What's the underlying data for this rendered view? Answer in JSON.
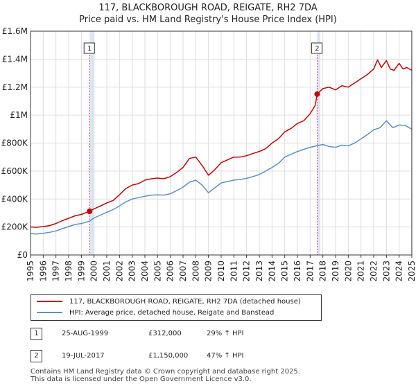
{
  "title": "117, BLACKBOROUGH ROAD, REIGATE, RH2 7DA",
  "subtitle": "Price paid vs. HM Land Registry's House Price Index (HPI)",
  "colors": {
    "property": "#cc0000",
    "hpi": "#5b8fcf",
    "shade": "#dde5f3",
    "grid": "#dddddd",
    "vline": "#ee4444"
  },
  "chart_data": {
    "type": "line",
    "title": "117, BLACKBOROUGH ROAD, REIGATE, RH2 7DA",
    "subtitle": "Price paid vs. HM Land Registry's House Price Index (HPI)",
    "xlim": [
      1995,
      2025
    ],
    "ylim": [
      0,
      1600000
    ],
    "x_ticks": [
      1995,
      1996,
      1997,
      1998,
      1999,
      2000,
      2001,
      2002,
      2003,
      2004,
      2005,
      2006,
      2007,
      2008,
      2009,
      2010,
      2011,
      2012,
      2013,
      2014,
      2015,
      2016,
      2017,
      2018,
      2019,
      2020,
      2021,
      2022,
      2023,
      2024,
      2025
    ],
    "x_tick_labels": [
      "1995",
      "1996",
      "1997",
      "1998",
      "1999",
      "2000",
      "2001",
      "2002",
      "2003",
      "2004",
      "2005",
      "2006",
      "2007",
      "2008",
      "2009",
      "2010",
      "2011",
      "2012",
      "2013",
      "2014",
      "2015",
      "2016",
      "2017",
      "2018",
      "2019",
      "2020",
      "2021",
      "2022",
      "2023",
      "2024",
      "2025"
    ],
    "y_ticks": [
      0,
      200000,
      400000,
      600000,
      800000,
      1000000,
      1200000,
      1400000,
      1600000
    ],
    "y_tick_labels": [
      "£0",
      "£200K",
      "£400K",
      "£600K",
      "£800K",
      "£1M",
      "£1.2M",
      "£1.4M",
      "£1.6M"
    ],
    "grid": true,
    "shaded_ranges": [
      [
        1999.65,
        2000.0
      ],
      [
        2017.55,
        2017.8
      ],
      [
        2024.95,
        2025.0
      ]
    ],
    "series": [
      {
        "name": "117, BLACKBOROUGH ROAD, REIGATE, RH2 7DA (detached house)",
        "color": "#cc0000",
        "x": [
          1995,
          1995.5,
          1996,
          1996.5,
          1997,
          1997.5,
          1998,
          1998.5,
          1999,
          1999.65,
          2000,
          2000.5,
          2001,
          2001.5,
          2002,
          2002.5,
          2003,
          2003.5,
          2004,
          2004.5,
          2005,
          2005.5,
          2006,
          2006.5,
          2007,
          2007.5,
          2008,
          2008.5,
          2009,
          2009.5,
          2010,
          2010.5,
          2011,
          2011.5,
          2012,
          2012.5,
          2013,
          2013.5,
          2014,
          2014.5,
          2015,
          2015.5,
          2016,
          2016.5,
          2017,
          2017.4,
          2017.55,
          2018,
          2018.5,
          2019,
          2019.5,
          2020,
          2020.5,
          2021,
          2021.5,
          2022,
          2022.3,
          2022.6,
          2023,
          2023.3,
          2023.6,
          2024,
          2024.3,
          2024.6,
          2025
        ],
        "values": [
          200000,
          198000,
          203000,
          210000,
          225000,
          245000,
          262000,
          280000,
          290000,
          312000,
          330000,
          350000,
          372000,
          390000,
          430000,
          475000,
          500000,
          510000,
          535000,
          545000,
          550000,
          545000,
          560000,
          590000,
          625000,
          690000,
          700000,
          640000,
          570000,
          610000,
          660000,
          680000,
          700000,
          700000,
          710000,
          725000,
          740000,
          760000,
          800000,
          830000,
          880000,
          905000,
          940000,
          960000,
          1010000,
          1070000,
          1150000,
          1190000,
          1200000,
          1180000,
          1210000,
          1200000,
          1230000,
          1260000,
          1290000,
          1330000,
          1395000,
          1340000,
          1390000,
          1330000,
          1320000,
          1370000,
          1330000,
          1340000,
          1320000
        ]
      },
      {
        "name": "HPI: Average price, detached house, Reigate and Banstead",
        "color": "#5b8fcf",
        "x": [
          1995,
          1995.5,
          1996,
          1996.5,
          1997,
          1997.5,
          1998,
          1998.5,
          1999,
          1999.65,
          2000,
          2000.5,
          2001,
          2001.5,
          2002,
          2002.5,
          2003,
          2003.5,
          2004,
          2004.5,
          2005,
          2005.5,
          2006,
          2006.5,
          2007,
          2007.5,
          2008,
          2008.5,
          2009,
          2009.5,
          2010,
          2010.5,
          2011,
          2011.5,
          2012,
          2012.5,
          2013,
          2013.5,
          2014,
          2014.5,
          2015,
          2015.5,
          2016,
          2016.5,
          2017,
          2017.55,
          2018,
          2018.5,
          2019,
          2019.5,
          2020,
          2020.5,
          2021,
          2021.5,
          2022,
          2022.5,
          2023,
          2023.5,
          2024,
          2024.5,
          2025
        ],
        "values": [
          152000,
          150000,
          155000,
          162000,
          172000,
          188000,
          203000,
          218000,
          225000,
          242000,
          265000,
          285000,
          305000,
          325000,
          350000,
          380000,
          400000,
          410000,
          420000,
          428000,
          430000,
          428000,
          438000,
          460000,
          485000,
          520000,
          535000,
          500000,
          445000,
          480000,
          515000,
          525000,
          535000,
          540000,
          548000,
          560000,
          575000,
          600000,
          625000,
          655000,
          700000,
          720000,
          740000,
          755000,
          770000,
          782000,
          790000,
          775000,
          770000,
          785000,
          780000,
          800000,
          830000,
          860000,
          895000,
          910000,
          960000,
          910000,
          930000,
          925000,
          900000
        ]
      }
    ],
    "annotations": [
      {
        "label": "1",
        "x": 1999.65,
        "y": 312000
      },
      {
        "label": "2",
        "x": 2017.55,
        "y": 1150000
      }
    ]
  },
  "legend": {
    "property_label": "117, BLACKBOROUGH ROAD, REIGATE, RH2 7DA (detached house)",
    "hpi_label": "HPI: Average price, detached house, Reigate and Banstead"
  },
  "sales": [
    {
      "num": "1",
      "date": "25-AUG-1999",
      "price": "£312,000",
      "hpi": "29% ↑ HPI"
    },
    {
      "num": "2",
      "date": "19-JUL-2017",
      "price": "£1,150,000",
      "hpi": "47% ↑ HPI"
    }
  ],
  "footer": {
    "line1": "Contains HM Land Registry data © Crown copyright and database right 2025.",
    "line2": "This data is licensed under the Open Government Licence v3.0."
  }
}
